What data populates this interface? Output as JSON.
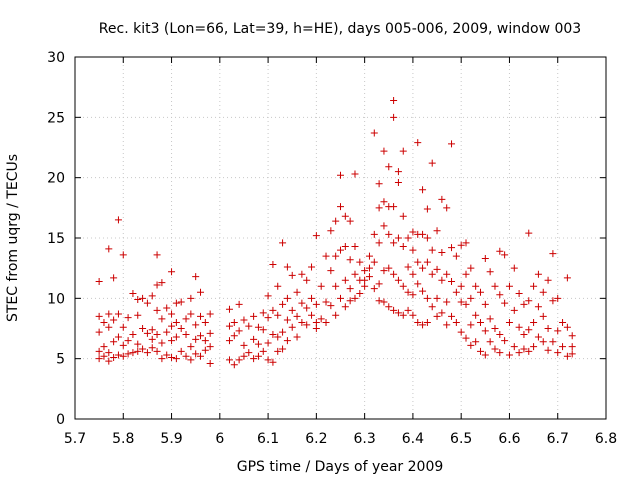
{
  "chart_data": {
    "type": "scatter",
    "title": "Rec. kit3 (Lon=66, Lat=39, h=HE), days 005-006, 2009, window 003",
    "xlabel": "GPS time / Days of year 2009",
    "ylabel": "STEC from uqrg / TECUs",
    "xlim": [
      5.7,
      6.8
    ],
    "ylim": [
      0,
      30
    ],
    "grid": true,
    "marker": "+",
    "color": "#cc0000",
    "x_ticks": [
      "5.7",
      "5.8",
      "5.9",
      "6",
      "6.1",
      "6.2",
      "6.3",
      "6.4",
      "6.5",
      "6.6",
      "6.7",
      "6.8"
    ],
    "y_ticks": [
      "0",
      "5",
      "10",
      "15",
      "20",
      "25",
      "30"
    ],
    "points": [
      [
        5.75,
        11.4
      ],
      [
        5.75,
        8.5
      ],
      [
        5.75,
        7.2
      ],
      [
        5.75,
        5.6
      ],
      [
        5.75,
        5.0
      ],
      [
        5.76,
        8.0
      ],
      [
        5.76,
        6.0
      ],
      [
        5.76,
        5.2
      ],
      [
        5.77,
        14.1
      ],
      [
        5.77,
        8.7
      ],
      [
        5.77,
        7.6
      ],
      [
        5.77,
        5.5
      ],
      [
        5.77,
        4.8
      ],
      [
        5.78,
        11.7
      ],
      [
        5.78,
        8.2
      ],
      [
        5.78,
        6.4
      ],
      [
        5.78,
        5.1
      ],
      [
        5.79,
        16.5
      ],
      [
        5.79,
        8.7
      ],
      [
        5.79,
        6.8
      ],
      [
        5.79,
        5.3
      ],
      [
        5.8,
        13.6
      ],
      [
        5.8,
        7.6
      ],
      [
        5.8,
        6.1
      ],
      [
        5.8,
        5.2
      ],
      [
        5.81,
        8.4
      ],
      [
        5.81,
        6.5
      ],
      [
        5.81,
        5.4
      ],
      [
        5.82,
        10.4
      ],
      [
        5.82,
        7.0
      ],
      [
        5.82,
        5.5
      ],
      [
        5.83,
        9.9
      ],
      [
        5.83,
        8.6
      ],
      [
        5.83,
        6.2
      ],
      [
        5.83,
        5.6
      ],
      [
        5.84,
        10.0
      ],
      [
        5.84,
        7.5
      ],
      [
        5.84,
        5.8
      ],
      [
        5.85,
        9.6
      ],
      [
        5.85,
        7.1
      ],
      [
        5.85,
        5.5
      ],
      [
        5.86,
        10.2
      ],
      [
        5.86,
        7.4
      ],
      [
        5.86,
        6.6
      ],
      [
        5.86,
        5.9
      ],
      [
        5.87,
        13.6
      ],
      [
        5.87,
        11.1
      ],
      [
        5.87,
        9.0
      ],
      [
        5.87,
        7.0
      ],
      [
        5.87,
        5.6
      ],
      [
        5.88,
        11.3
      ],
      [
        5.88,
        8.3
      ],
      [
        5.88,
        6.3
      ],
      [
        5.88,
        5.0
      ],
      [
        5.89,
        9.2
      ],
      [
        5.89,
        7.2
      ],
      [
        5.89,
        5.3
      ],
      [
        5.9,
        12.2
      ],
      [
        5.9,
        8.7
      ],
      [
        5.9,
        7.7
      ],
      [
        5.9,
        6.5
      ],
      [
        5.9,
        5.1
      ],
      [
        5.91,
        9.6
      ],
      [
        5.91,
        8.0
      ],
      [
        5.91,
        6.8
      ],
      [
        5.91,
        5.0
      ],
      [
        5.92,
        9.7
      ],
      [
        5.92,
        7.5
      ],
      [
        5.92,
        5.6
      ],
      [
        5.93,
        8.3
      ],
      [
        5.93,
        7.0
      ],
      [
        5.93,
        5.2
      ],
      [
        5.94,
        10.0
      ],
      [
        5.94,
        8.7
      ],
      [
        5.94,
        6.0
      ],
      [
        5.94,
        4.9
      ],
      [
        5.95,
        11.8
      ],
      [
        5.95,
        7.8
      ],
      [
        5.95,
        6.6
      ],
      [
        5.95,
        5.4
      ],
      [
        5.96,
        10.5
      ],
      [
        5.96,
        8.5
      ],
      [
        5.96,
        6.9
      ],
      [
        5.96,
        5.2
      ],
      [
        5.97,
        8.0
      ],
      [
        5.97,
        6.5
      ],
      [
        5.97,
        5.7
      ],
      [
        5.98,
        8.7
      ],
      [
        5.98,
        7.1
      ],
      [
        5.98,
        6.0
      ],
      [
        5.98,
        4.6
      ],
      [
        6.02,
        9.1
      ],
      [
        6.02,
        7.7
      ],
      [
        6.02,
        6.5
      ],
      [
        6.02,
        4.9
      ],
      [
        6.03,
        8.0
      ],
      [
        6.03,
        6.9
      ],
      [
        6.03,
        4.5
      ],
      [
        6.04,
        9.5
      ],
      [
        6.04,
        7.3
      ],
      [
        6.04,
        4.9
      ],
      [
        6.05,
        8.2
      ],
      [
        6.05,
        6.1
      ],
      [
        6.05,
        5.2
      ],
      [
        6.06,
        7.7
      ],
      [
        6.06,
        5.5
      ],
      [
        6.07,
        8.5
      ],
      [
        6.07,
        6.6
      ],
      [
        6.07,
        5.0
      ],
      [
        6.08,
        7.6
      ],
      [
        6.08,
        6.2
      ],
      [
        6.08,
        5.2
      ],
      [
        6.09,
        8.8
      ],
      [
        6.09,
        7.4
      ],
      [
        6.09,
        5.6
      ],
      [
        6.1,
        10.2
      ],
      [
        6.1,
        8.4
      ],
      [
        6.1,
        6.3
      ],
      [
        6.1,
        4.9
      ],
      [
        6.11,
        12.8
      ],
      [
        6.11,
        9.0
      ],
      [
        6.11,
        7.0
      ],
      [
        6.11,
        4.7
      ],
      [
        6.12,
        11.0
      ],
      [
        6.12,
        8.6
      ],
      [
        6.12,
        6.8
      ],
      [
        6.12,
        5.6
      ],
      [
        6.13,
        14.6
      ],
      [
        6.13,
        9.5
      ],
      [
        6.13,
        7.2
      ],
      [
        6.13,
        5.8
      ],
      [
        6.14,
        12.6
      ],
      [
        6.14,
        10.0
      ],
      [
        6.14,
        8.2
      ],
      [
        6.14,
        6.5
      ],
      [
        6.15,
        11.9
      ],
      [
        6.15,
        9.0
      ],
      [
        6.15,
        7.6
      ],
      [
        6.16,
        10.5
      ],
      [
        6.16,
        8.5
      ],
      [
        6.16,
        6.8
      ],
      [
        6.17,
        12.0
      ],
      [
        6.17,
        9.6
      ],
      [
        6.17,
        8.0
      ],
      [
        6.18,
        11.5
      ],
      [
        6.18,
        9.2
      ],
      [
        6.18,
        7.8
      ],
      [
        6.19,
        12.6
      ],
      [
        6.19,
        10.0
      ],
      [
        6.19,
        8.6
      ],
      [
        6.2,
        15.2
      ],
      [
        6.2,
        9.5
      ],
      [
        6.2,
        8.0
      ],
      [
        6.2,
        7.5
      ],
      [
        6.21,
        11.0
      ],
      [
        6.21,
        8.3
      ],
      [
        6.22,
        13.5
      ],
      [
        6.22,
        9.7
      ],
      [
        6.22,
        8.0
      ],
      [
        6.23,
        15.6
      ],
      [
        6.23,
        12.3
      ],
      [
        6.23,
        9.4
      ],
      [
        6.24,
        16.4
      ],
      [
        6.24,
        13.5
      ],
      [
        6.24,
        11.0
      ],
      [
        6.24,
        8.6
      ],
      [
        6.25,
        20.2
      ],
      [
        6.25,
        17.6
      ],
      [
        6.25,
        14.0
      ],
      [
        6.25,
        10.0
      ],
      [
        6.26,
        16.8
      ],
      [
        6.26,
        14.3
      ],
      [
        6.26,
        11.5
      ],
      [
        6.26,
        9.3
      ],
      [
        6.27,
        16.4
      ],
      [
        6.27,
        13.2
      ],
      [
        6.27,
        10.8
      ],
      [
        6.27,
        9.8
      ],
      [
        6.28,
        20.3
      ],
      [
        6.28,
        14.3
      ],
      [
        6.28,
        12.0
      ],
      [
        6.28,
        10.0
      ],
      [
        6.29,
        13.0
      ],
      [
        6.29,
        11.5
      ],
      [
        6.29,
        10.4
      ],
      [
        6.3,
        12.3
      ],
      [
        6.3,
        11.5
      ],
      [
        6.3,
        11.0
      ],
      [
        6.31,
        13.5
      ],
      [
        6.31,
        12.5
      ],
      [
        6.31,
        11.8
      ],
      [
        6.32,
        23.7
      ],
      [
        6.32,
        15.3
      ],
      [
        6.32,
        13.0
      ],
      [
        6.32,
        10.8
      ],
      [
        6.33,
        19.5
      ],
      [
        6.33,
        17.5
      ],
      [
        6.33,
        14.6
      ],
      [
        6.33,
        11.2
      ],
      [
        6.33,
        9.8
      ],
      [
        6.34,
        22.2
      ],
      [
        6.34,
        18.0
      ],
      [
        6.34,
        16.0
      ],
      [
        6.34,
        12.3
      ],
      [
        6.34,
        9.7
      ],
      [
        6.35,
        20.9
      ],
      [
        6.35,
        17.6
      ],
      [
        6.35,
        15.3
      ],
      [
        6.35,
        12.5
      ],
      [
        6.35,
        9.3
      ],
      [
        6.36,
        26.4
      ],
      [
        6.36,
        25.0
      ],
      [
        6.36,
        17.6
      ],
      [
        6.36,
        14.6
      ],
      [
        6.36,
        12.0
      ],
      [
        6.36,
        9.0
      ],
      [
        6.37,
        20.5
      ],
      [
        6.37,
        19.6
      ],
      [
        6.37,
        15.0
      ],
      [
        6.37,
        11.5
      ],
      [
        6.37,
        8.8
      ],
      [
        6.38,
        22.2
      ],
      [
        6.38,
        16.8
      ],
      [
        6.38,
        14.3
      ],
      [
        6.38,
        11.0
      ],
      [
        6.38,
        8.6
      ],
      [
        6.39,
        15.0
      ],
      [
        6.39,
        12.6
      ],
      [
        6.39,
        10.5
      ],
      [
        6.39,
        9.0
      ],
      [
        6.4,
        15.5
      ],
      [
        6.4,
        14.0
      ],
      [
        6.4,
        12.0
      ],
      [
        6.4,
        10.3
      ],
      [
        6.4,
        8.6
      ],
      [
        6.41,
        22.9
      ],
      [
        6.41,
        15.3
      ],
      [
        6.41,
        13.0
      ],
      [
        6.41,
        11.2
      ],
      [
        6.41,
        8.0
      ],
      [
        6.42,
        19.0
      ],
      [
        6.42,
        15.3
      ],
      [
        6.42,
        12.5
      ],
      [
        6.42,
        10.6
      ],
      [
        6.42,
        7.8
      ],
      [
        6.43,
        17.4
      ],
      [
        6.43,
        15.0
      ],
      [
        6.43,
        13.0
      ],
      [
        6.43,
        10.0
      ],
      [
        6.43,
        8.0
      ],
      [
        6.44,
        21.2
      ],
      [
        6.44,
        14.0
      ],
      [
        6.44,
        12.0
      ],
      [
        6.44,
        9.3
      ],
      [
        6.45,
        15.6
      ],
      [
        6.45,
        12.4
      ],
      [
        6.45,
        10.0
      ],
      [
        6.45,
        8.5
      ],
      [
        6.46,
        18.2
      ],
      [
        6.46,
        13.8
      ],
      [
        6.46,
        11.5
      ],
      [
        6.46,
        8.8
      ],
      [
        6.47,
        17.5
      ],
      [
        6.47,
        12.0
      ],
      [
        6.47,
        9.7
      ],
      [
        6.47,
        7.8
      ],
      [
        6.48,
        22.8
      ],
      [
        6.48,
        14.2
      ],
      [
        6.48,
        11.4
      ],
      [
        6.48,
        8.5
      ],
      [
        6.49,
        13.5
      ],
      [
        6.49,
        10.5
      ],
      [
        6.49,
        8.0
      ],
      [
        6.5,
        14.4
      ],
      [
        6.5,
        11.0
      ],
      [
        6.5,
        9.7
      ],
      [
        6.5,
        7.2
      ],
      [
        6.51,
        14.6
      ],
      [
        6.51,
        12.0
      ],
      [
        6.51,
        9.5
      ],
      [
        6.51,
        6.7
      ],
      [
        6.52,
        12.5
      ],
      [
        6.52,
        10.0
      ],
      [
        6.52,
        7.8
      ],
      [
        6.52,
        6.1
      ],
      [
        6.53,
        11.0
      ],
      [
        6.53,
        8.6
      ],
      [
        6.53,
        6.4
      ],
      [
        6.54,
        10.5
      ],
      [
        6.54,
        8.0
      ],
      [
        6.54,
        5.6
      ],
      [
        6.55,
        13.3
      ],
      [
        6.55,
        9.5
      ],
      [
        6.55,
        7.3
      ],
      [
        6.55,
        5.3
      ],
      [
        6.56,
        12.2
      ],
      [
        6.56,
        8.3
      ],
      [
        6.56,
        6.4
      ],
      [
        6.57,
        11.0
      ],
      [
        6.57,
        7.5
      ],
      [
        6.57,
        5.8
      ],
      [
        6.58,
        13.9
      ],
      [
        6.58,
        10.3
      ],
      [
        6.58,
        7.0
      ],
      [
        6.58,
        5.5
      ],
      [
        6.59,
        13.6
      ],
      [
        6.59,
        9.6
      ],
      [
        6.59,
        6.5
      ],
      [
        6.6,
        11.0
      ],
      [
        6.6,
        8.0
      ],
      [
        6.6,
        5.3
      ],
      [
        6.61,
        12.5
      ],
      [
        6.61,
        9.0
      ],
      [
        6.61,
        6.0
      ],
      [
        6.62,
        10.4
      ],
      [
        6.62,
        7.6
      ],
      [
        6.62,
        5.5
      ],
      [
        6.63,
        9.5
      ],
      [
        6.63,
        7.0
      ],
      [
        6.63,
        5.8
      ],
      [
        6.64,
        15.4
      ],
      [
        6.64,
        9.8
      ],
      [
        6.64,
        7.4
      ],
      [
        6.64,
        5.6
      ],
      [
        6.65,
        11.0
      ],
      [
        6.65,
        8.0
      ],
      [
        6.65,
        6.0
      ],
      [
        6.66,
        12.0
      ],
      [
        6.66,
        9.3
      ],
      [
        6.66,
        6.8
      ],
      [
        6.67,
        10.5
      ],
      [
        6.67,
        8.5
      ],
      [
        6.67,
        6.4
      ],
      [
        6.68,
        11.5
      ],
      [
        6.68,
        7.5
      ],
      [
        6.68,
        5.7
      ],
      [
        6.69,
        13.7
      ],
      [
        6.69,
        9.8
      ],
      [
        6.69,
        6.4
      ],
      [
        6.7,
        10.0
      ],
      [
        6.7,
        7.3
      ],
      [
        6.7,
        5.5
      ],
      [
        6.71,
        8.0
      ],
      [
        6.71,
        6.0
      ],
      [
        6.72,
        11.7
      ],
      [
        6.72,
        7.6
      ],
      [
        6.72,
        5.2
      ],
      [
        6.73,
        6.9
      ],
      [
        6.73,
        6.0
      ],
      [
        6.73,
        5.4
      ]
    ]
  }
}
